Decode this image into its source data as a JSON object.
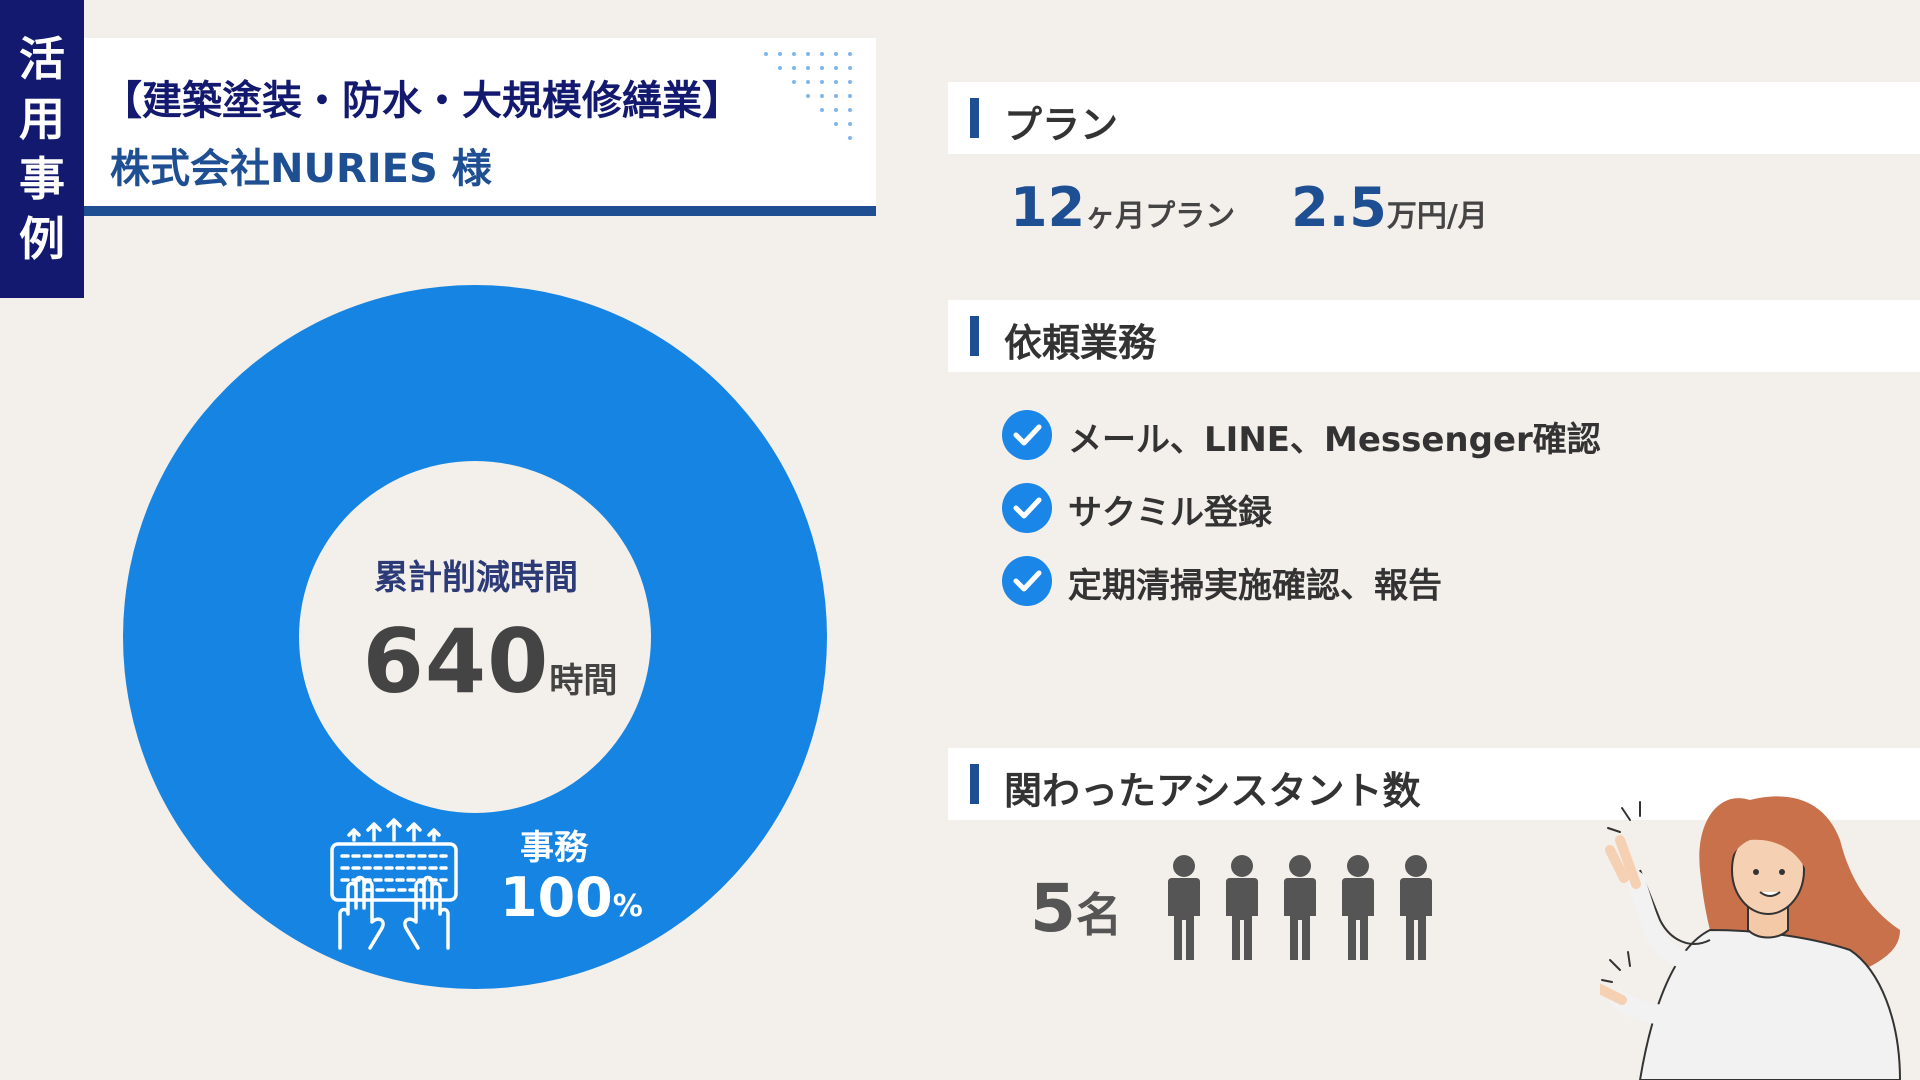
{
  "side_tag": [
    "活",
    "用",
    "事",
    "例"
  ],
  "header": {
    "industry": "【建築塗装・防水・大規模修繕業】",
    "company": "株式会社NURIES 様"
  },
  "summary": {
    "label": "累計削減時間",
    "value": "640",
    "unit": "時間",
    "category": "事務",
    "category_share": "100",
    "category_share_unit": "%"
  },
  "plan": {
    "heading": "プラン",
    "term_value": "12",
    "term_unit": "ヶ月プラン",
    "price_value": "2.5",
    "price_unit": "万円/月"
  },
  "tasks": {
    "heading": "依頼業務",
    "items": [
      "メール、LINE、Messenger確認",
      "サクミル登録",
      "定期清掃実施確認、報告"
    ]
  },
  "assistants": {
    "heading": "関わったアシスタント数",
    "count": "5",
    "unit": "名"
  },
  "colors": {
    "navy": "#12196e",
    "accent_blue": "#1f4f93",
    "donut_blue": "#1584e3",
    "background": "#f3efea"
  },
  "icons": [
    "typing-hands-icon",
    "check-circle-icon",
    "person-icon",
    "pointing-woman-illustration"
  ]
}
